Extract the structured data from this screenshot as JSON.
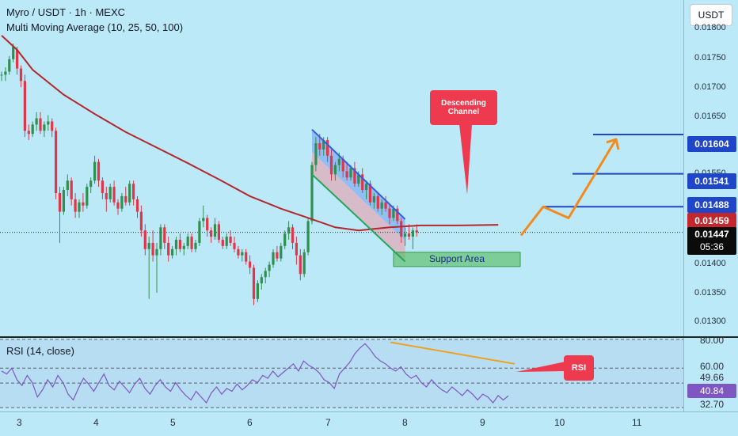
{
  "header": {
    "title": "Myro / USDT · 1h · MEXC",
    "indicator": "Multi Moving Average (10, 25, 50, 100)",
    "currency_button": "USDT"
  },
  "rsi_panel": {
    "label": "RSI (14, close)",
    "tag_value": "49.66",
    "current_value": "40.84",
    "levels": [
      "80.00",
      "60.00",
      "32.70"
    ]
  },
  "price_axis": {
    "ticks": [
      "0.01800",
      "0.01750",
      "0.01700",
      "0.01650",
      "0.01550",
      "0.01400",
      "0.01350",
      "0.01300"
    ],
    "levels": {
      "target_3": "0.01604",
      "target_2": "0.01541",
      "target_1": "0.01488",
      "ma_value": "0.01459"
    },
    "current_price": "0.01447",
    "countdown": "05:36"
  },
  "time_axis": {
    "ticks": [
      "3",
      "4",
      "5",
      "6",
      "7",
      "8",
      "9",
      "10",
      "11"
    ]
  },
  "annotations": {
    "descending_channel": "Descending\nChannel",
    "support_area": "Support Area",
    "rsi_callout": "RSI"
  },
  "colors": {
    "background": "#bce9f8",
    "up_candle": "#2f8f4e",
    "down_candle": "#e0364a",
    "moving_average": "#b3282e",
    "channel_upper": "#2e5fe0",
    "channel_lower": "#25a55a",
    "target_line": "#1f46c8",
    "projection": "#f28a1c",
    "rsi_line": "#7e57c2",
    "callout": "#ee3a4e"
  },
  "chart_data": {
    "type": "candlestick",
    "title": "Myro / USDT · 1h · MEXC",
    "xlabel": "",
    "ylabel": "",
    "ylim": [
      0.0128,
      0.0182
    ],
    "moving_average": {
      "name": "Multi Moving Average (10, 25, 50, 100)",
      "points": [
        [
          0,
          0.01763
        ],
        [
          4,
          0.0174
        ],
        [
          8,
          0.01708
        ],
        [
          16,
          0.01668
        ],
        [
          24,
          0.01637
        ],
        [
          32,
          0.01608
        ],
        [
          40,
          0.01583
        ],
        [
          48,
          0.01558
        ],
        [
          56,
          0.01532
        ],
        [
          64,
          0.01505
        ],
        [
          72,
          0.01485
        ],
        [
          80,
          0.01468
        ],
        [
          86,
          0.01455
        ],
        [
          92,
          0.0145
        ],
        [
          100,
          0.01455
        ],
        [
          108,
          0.01458
        ],
        [
          118,
          0.01458
        ],
        [
          128,
          0.01459
        ]
      ]
    },
    "candles": [
      [
        0.017,
        0.01705,
        0.0169,
        0.017
      ],
      [
        0.017,
        0.01712,
        0.0169,
        0.01705
      ],
      [
        0.01705,
        0.0173,
        0.017,
        0.01725
      ],
      [
        0.01725,
        0.0175,
        0.0172,
        0.01745
      ],
      [
        0.0174,
        0.01745,
        0.017,
        0.0171
      ],
      [
        0.0171,
        0.01715,
        0.0168,
        0.0169
      ],
      [
        0.0169,
        0.017,
        0.016,
        0.0161
      ],
      [
        0.0161,
        0.0162,
        0.01595,
        0.01605
      ],
      [
        0.01605,
        0.01625,
        0.016,
        0.0162
      ],
      [
        0.0162,
        0.0164,
        0.0161,
        0.0163
      ],
      [
        0.0163,
        0.0164,
        0.01605,
        0.0161
      ],
      [
        0.0161,
        0.01625,
        0.016,
        0.0162
      ],
      [
        0.0162,
        0.01635,
        0.0161,
        0.01625
      ],
      [
        0.01625,
        0.0163,
        0.016,
        0.0161
      ],
      [
        0.0161,
        0.01615,
        0.015,
        0.0151
      ],
      [
        0.0151,
        0.0152,
        0.0143,
        0.0148
      ],
      [
        0.0148,
        0.0152,
        0.01475,
        0.01515
      ],
      [
        0.01515,
        0.0154,
        0.01505,
        0.0153
      ],
      [
        0.0153,
        0.01535,
        0.0149,
        0.015
      ],
      [
        0.015,
        0.0151,
        0.0147,
        0.0148
      ],
      [
        0.0148,
        0.015,
        0.0147,
        0.01495
      ],
      [
        0.01495,
        0.0151,
        0.0148,
        0.0149
      ],
      [
        0.0149,
        0.01525,
        0.01485,
        0.0152
      ],
      [
        0.0152,
        0.01535,
        0.0151,
        0.0153
      ],
      [
        0.0153,
        0.0157,
        0.01525,
        0.0156
      ],
      [
        0.0156,
        0.01565,
        0.0152,
        0.0153
      ],
      [
        0.0153,
        0.01535,
        0.015,
        0.0151
      ],
      [
        0.0151,
        0.0152,
        0.0148,
        0.015
      ],
      [
        0.015,
        0.01525,
        0.01495,
        0.0152
      ],
      [
        0.0152,
        0.0153,
        0.0149,
        0.01495
      ],
      [
        0.01495,
        0.015,
        0.01475,
        0.01485
      ],
      [
        0.01485,
        0.0151,
        0.0148,
        0.01505
      ],
      [
        0.01505,
        0.0152,
        0.0149,
        0.01495
      ],
      [
        0.01495,
        0.0153,
        0.0149,
        0.01525
      ],
      [
        0.01525,
        0.0153,
        0.0149,
        0.015
      ],
      [
        0.015,
        0.01505,
        0.0147,
        0.0148
      ],
      [
        0.0148,
        0.0149,
        0.0144,
        0.0145
      ],
      [
        0.0145,
        0.0146,
        0.0141,
        0.0142
      ],
      [
        0.0142,
        0.0144,
        0.0134,
        0.0143
      ],
      [
        0.0143,
        0.0145,
        0.014,
        0.0141
      ],
      [
        0.0141,
        0.0143,
        0.0135,
        0.0142
      ],
      [
        0.0142,
        0.0146,
        0.0141,
        0.01455
      ],
      [
        0.01455,
        0.0146,
        0.0142,
        0.0143
      ],
      [
        0.0143,
        0.0144,
        0.014,
        0.0141
      ],
      [
        0.0141,
        0.01425,
        0.01405,
        0.0142
      ],
      [
        0.0142,
        0.0144,
        0.0141,
        0.01435
      ],
      [
        0.01435,
        0.01445,
        0.01415,
        0.0142
      ],
      [
        0.0142,
        0.0143,
        0.0141,
        0.01425
      ],
      [
        0.01425,
        0.01445,
        0.0142,
        0.0144
      ],
      [
        0.0144,
        0.01445,
        0.01415,
        0.0142
      ],
      [
        0.0142,
        0.01435,
        0.01415,
        0.0143
      ],
      [
        0.0143,
        0.0147,
        0.01425,
        0.01465
      ],
      [
        0.01465,
        0.0149,
        0.01455,
        0.0147
      ],
      [
        0.0147,
        0.01475,
        0.0144,
        0.0145
      ],
      [
        0.0145,
        0.01455,
        0.0143,
        0.0144
      ],
      [
        0.0144,
        0.0147,
        0.01435,
        0.0146
      ],
      [
        0.0146,
        0.01465,
        0.0143,
        0.01435
      ],
      [
        0.01435,
        0.0144,
        0.0142,
        0.01425
      ],
      [
        0.01425,
        0.01445,
        0.0142,
        0.0144
      ],
      [
        0.0144,
        0.0145,
        0.01425,
        0.0143
      ],
      [
        0.0143,
        0.0144,
        0.01415,
        0.0142
      ],
      [
        0.0142,
        0.01425,
        0.01405,
        0.0141
      ],
      [
        0.0141,
        0.0142,
        0.014,
        0.01415
      ],
      [
        0.01415,
        0.0142,
        0.01395,
        0.014
      ],
      [
        0.014,
        0.0141,
        0.0138,
        0.0139
      ],
      [
        0.0139,
        0.01395,
        0.0133,
        0.0134
      ],
      [
        0.0134,
        0.0137,
        0.01335,
        0.01365
      ],
      [
        0.01365,
        0.0138,
        0.01355,
        0.01375
      ],
      [
        0.01375,
        0.0139,
        0.01365,
        0.01385
      ],
      [
        0.01385,
        0.014,
        0.01375,
        0.01395
      ],
      [
        0.01395,
        0.0142,
        0.0139,
        0.01415
      ],
      [
        0.01415,
        0.01425,
        0.014,
        0.01405
      ],
      [
        0.01405,
        0.0143,
        0.014,
        0.01425
      ],
      [
        0.01425,
        0.0145,
        0.0142,
        0.01445
      ],
      [
        0.01445,
        0.01465,
        0.01435,
        0.01455
      ],
      [
        0.01455,
        0.0146,
        0.0142,
        0.0143
      ],
      [
        0.0143,
        0.0144,
        0.01395,
        0.0141
      ],
      [
        0.0141,
        0.0142,
        0.0137,
        0.0138
      ],
      [
        0.0138,
        0.0142,
        0.01375,
        0.01415
      ],
      [
        0.01415,
        0.0147,
        0.0141,
        0.01465
      ],
      [
        0.01465,
        0.0156,
        0.0146,
        0.01555
      ],
      [
        0.01555,
        0.016,
        0.01545,
        0.0159
      ],
      [
        0.0159,
        0.01605,
        0.0157,
        0.0158
      ],
      [
        0.0158,
        0.016,
        0.0157,
        0.01595
      ],
      [
        0.01595,
        0.016,
        0.0156,
        0.0157
      ],
      [
        0.0157,
        0.0158,
        0.0153,
        0.0154
      ],
      [
        0.0154,
        0.0156,
        0.0153,
        0.01555
      ],
      [
        0.01555,
        0.01575,
        0.01545,
        0.01565
      ],
      [
        0.01565,
        0.0157,
        0.01535,
        0.01545
      ],
      [
        0.01545,
        0.0156,
        0.0153,
        0.01535
      ],
      [
        0.01535,
        0.01555,
        0.0153,
        0.0155
      ],
      [
        0.0155,
        0.0156,
        0.0152,
        0.01525
      ],
      [
        0.01525,
        0.01545,
        0.0152,
        0.0154
      ],
      [
        0.0154,
        0.0155,
        0.0151,
        0.01515
      ],
      [
        0.01515,
        0.0153,
        0.015,
        0.01525
      ],
      [
        0.01525,
        0.0153,
        0.0149,
        0.01495
      ],
      [
        0.01495,
        0.0151,
        0.01485,
        0.01505
      ],
      [
        0.01505,
        0.0151,
        0.0148,
        0.01485
      ],
      [
        0.01485,
        0.015,
        0.01475,
        0.01495
      ],
      [
        0.01495,
        0.01505,
        0.0148,
        0.01485
      ],
      [
        0.01485,
        0.0149,
        0.0146,
        0.0147
      ],
      [
        0.0147,
        0.0149,
        0.01465,
        0.01485
      ],
      [
        0.01485,
        0.0149,
        0.0146,
        0.01465
      ],
      [
        0.01465,
        0.0147,
        0.0143,
        0.0144
      ],
      [
        0.0144,
        0.01455,
        0.01425,
        0.01445
      ],
      [
        0.01445,
        0.0146,
        0.01435,
        0.0144
      ],
      [
        0.0144,
        0.01455,
        0.0142,
        0.0145
      ],
      [
        0.0145,
        0.0146,
        0.0144,
        0.01447
      ]
    ],
    "rsi": [
      58,
      56,
      60,
      52,
      48,
      55,
      50,
      40,
      45,
      52,
      47,
      55,
      50,
      42,
      38,
      46,
      53,
      49,
      44,
      50,
      56,
      48,
      45,
      51,
      47,
      43,
      49,
      53,
      46,
      42,
      48,
      52,
      47,
      44,
      50,
      45,
      41,
      38,
      44,
      40,
      36,
      43,
      47,
      42,
      46,
      44,
      49,
      45,
      48,
      52,
      50,
      55,
      53,
      58,
      54,
      57,
      60,
      63,
      58,
      65,
      62,
      60,
      57,
      52,
      50,
      46,
      56,
      60,
      64,
      70,
      74,
      77,
      73,
      68,
      65,
      63,
      60,
      58,
      61,
      56,
      53,
      55,
      50,
      47,
      52,
      48,
      45,
      43,
      47,
      44,
      41,
      45,
      42,
      38,
      42,
      40,
      36,
      41,
      38,
      40.84
    ],
    "rsi_levels": [
      80,
      60,
      49.66,
      32.7
    ],
    "rsi_ylim": [
      30,
      81
    ],
    "trendlines": {
      "channel_upper": [
        [
          80,
          0.01612
        ],
        [
          104,
          0.01468
        ]
      ],
      "channel_lower": [
        [
          80,
          0.0154
        ],
        [
          104,
          0.014
        ]
      ],
      "rsi_trend": [
        [
          79,
          78
        ],
        [
          104,
          63
        ]
      ]
    },
    "support_area": [
      0.01392,
      0.01415
    ],
    "targets": [
      0.01488,
      0.01541,
      0.01604
    ],
    "projection_path": [
      [
        106,
        0.01442
      ],
      [
        114,
        0.01488
      ],
      [
        119,
        0.0147
      ],
      [
        128,
        0.01604
      ]
    ]
  }
}
